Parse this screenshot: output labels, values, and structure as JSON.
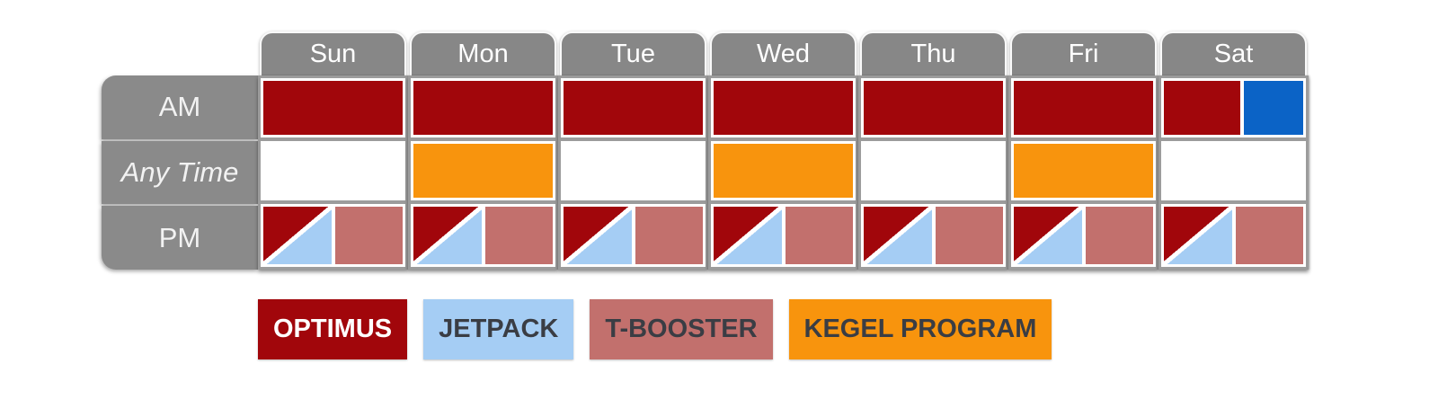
{
  "palette": {
    "optimus": "#A1060B",
    "jetpack": "#A5CDF4",
    "tbooster": "#C2706D",
    "kegel": "#F8940D",
    "blue": "#0B63C6",
    "tab_gray": "#878787",
    "label_gray": "#8A8A8A",
    "grid_gray": "#9C9C9C",
    "legend_text_dark": "#3A3D44",
    "legend_text_light": "#FFFFFF"
  },
  "schedule": {
    "days": [
      "Sun",
      "Mon",
      "Tue",
      "Wed",
      "Thu",
      "Fri",
      "Sat"
    ],
    "rows": [
      {
        "key": "am",
        "label": "AM",
        "italic": false,
        "cells": [
          {
            "blocks": [
              {
                "kind": "fill",
                "color": "optimus",
                "name": "optimus-block"
              }
            ]
          },
          {
            "blocks": [
              {
                "kind": "fill",
                "color": "optimus",
                "name": "optimus-block"
              }
            ]
          },
          {
            "blocks": [
              {
                "kind": "fill",
                "color": "optimus",
                "name": "optimus-block"
              }
            ]
          },
          {
            "blocks": [
              {
                "kind": "fill",
                "color": "optimus",
                "name": "optimus-block"
              }
            ]
          },
          {
            "blocks": [
              {
                "kind": "fill",
                "color": "optimus",
                "name": "optimus-block"
              }
            ]
          },
          {
            "blocks": [
              {
                "kind": "fill",
                "color": "optimus",
                "name": "optimus-block"
              }
            ]
          },
          {
            "blocks": [
              {
                "kind": "fill",
                "color": "optimus",
                "flex": "56",
                "name": "optimus-block"
              },
              {
                "kind": "fill",
                "color": "blue",
                "flex": "44",
                "name": "blue-block"
              }
            ]
          }
        ]
      },
      {
        "key": "anytime",
        "label": "Any Time",
        "italic": true,
        "cells": [
          {
            "blocks": []
          },
          {
            "blocks": [
              {
                "kind": "fill",
                "color": "kegel",
                "name": "kegel-program-block"
              }
            ]
          },
          {
            "blocks": []
          },
          {
            "blocks": [
              {
                "kind": "fill",
                "color": "kegel",
                "name": "kegel-program-block"
              }
            ]
          },
          {
            "blocks": []
          },
          {
            "blocks": [
              {
                "kind": "fill",
                "color": "kegel",
                "name": "kegel-program-block"
              }
            ]
          },
          {
            "blocks": []
          }
        ]
      },
      {
        "key": "pm",
        "label": "PM",
        "italic": false,
        "cells": [
          {
            "blocks": [
              {
                "kind": "diag",
                "upper": "optimus",
                "lower": "jetpack",
                "name": "optimus-jetpack-split-block"
              },
              {
                "kind": "fill",
                "color": "tbooster",
                "name": "t-booster-block"
              }
            ]
          },
          {
            "blocks": [
              {
                "kind": "diag",
                "upper": "optimus",
                "lower": "jetpack",
                "name": "optimus-jetpack-split-block"
              },
              {
                "kind": "fill",
                "color": "tbooster",
                "name": "t-booster-block"
              }
            ]
          },
          {
            "blocks": [
              {
                "kind": "diag",
                "upper": "optimus",
                "lower": "jetpack",
                "name": "optimus-jetpack-split-block"
              },
              {
                "kind": "fill",
                "color": "tbooster",
                "name": "t-booster-block"
              }
            ]
          },
          {
            "blocks": [
              {
                "kind": "diag",
                "upper": "optimus",
                "lower": "jetpack",
                "name": "optimus-jetpack-split-block"
              },
              {
                "kind": "fill",
                "color": "tbooster",
                "name": "t-booster-block"
              }
            ]
          },
          {
            "blocks": [
              {
                "kind": "diag",
                "upper": "optimus",
                "lower": "jetpack",
                "name": "optimus-jetpack-split-block"
              },
              {
                "kind": "fill",
                "color": "tbooster",
                "name": "t-booster-block"
              }
            ]
          },
          {
            "blocks": [
              {
                "kind": "diag",
                "upper": "optimus",
                "lower": "jetpack",
                "name": "optimus-jetpack-split-block"
              },
              {
                "kind": "fill",
                "color": "tbooster",
                "name": "t-booster-block"
              }
            ]
          },
          {
            "blocks": [
              {
                "kind": "diag",
                "upper": "optimus",
                "lower": "jetpack",
                "name": "optimus-jetpack-split-block"
              },
              {
                "kind": "fill",
                "color": "tbooster",
                "name": "t-booster-block"
              }
            ]
          }
        ]
      }
    ]
  },
  "legend": [
    {
      "label": "OPTIMUS",
      "color": "optimus",
      "text_color": "#FFFFFF"
    },
    {
      "label": "JETPACK",
      "color": "jetpack",
      "text_color": "#3A3D44"
    },
    {
      "label": "T-BOOSTER",
      "color": "tbooster",
      "text_color": "#3A3D44"
    },
    {
      "label": "KEGEL PROGRAM",
      "color": "kegel",
      "text_color": "#3A3D44"
    }
  ],
  "chart_data": {
    "type": "table",
    "columns": [
      "Sun",
      "Mon",
      "Tue",
      "Wed",
      "Thu",
      "Fri",
      "Sat"
    ],
    "rows": [
      "AM",
      "Any Time",
      "PM"
    ],
    "cells": {
      "AM": [
        "OPTIMUS",
        "OPTIMUS",
        "OPTIMUS",
        "OPTIMUS",
        "OPTIMUS",
        "OPTIMUS",
        "OPTIMUS + unlabeled blue block"
      ],
      "Any Time": [
        "",
        "KEGEL PROGRAM",
        "",
        "KEGEL PROGRAM",
        "",
        "KEGEL PROGRAM",
        ""
      ],
      "PM": [
        "OPTIMUS/JETPACK diagonal split + T-BOOSTER",
        "OPTIMUS/JETPACK diagonal split + T-BOOSTER",
        "OPTIMUS/JETPACK diagonal split + T-BOOSTER",
        "OPTIMUS/JETPACK diagonal split + T-BOOSTER",
        "OPTIMUS/JETPACK diagonal split + T-BOOSTER",
        "OPTIMUS/JETPACK diagonal split + T-BOOSTER",
        "OPTIMUS/JETPACK diagonal split + T-BOOSTER"
      ]
    },
    "legend_entries": [
      "OPTIMUS",
      "JETPACK",
      "T-BOOSTER",
      "KEGEL PROGRAM"
    ],
    "legend_position": "below table"
  }
}
